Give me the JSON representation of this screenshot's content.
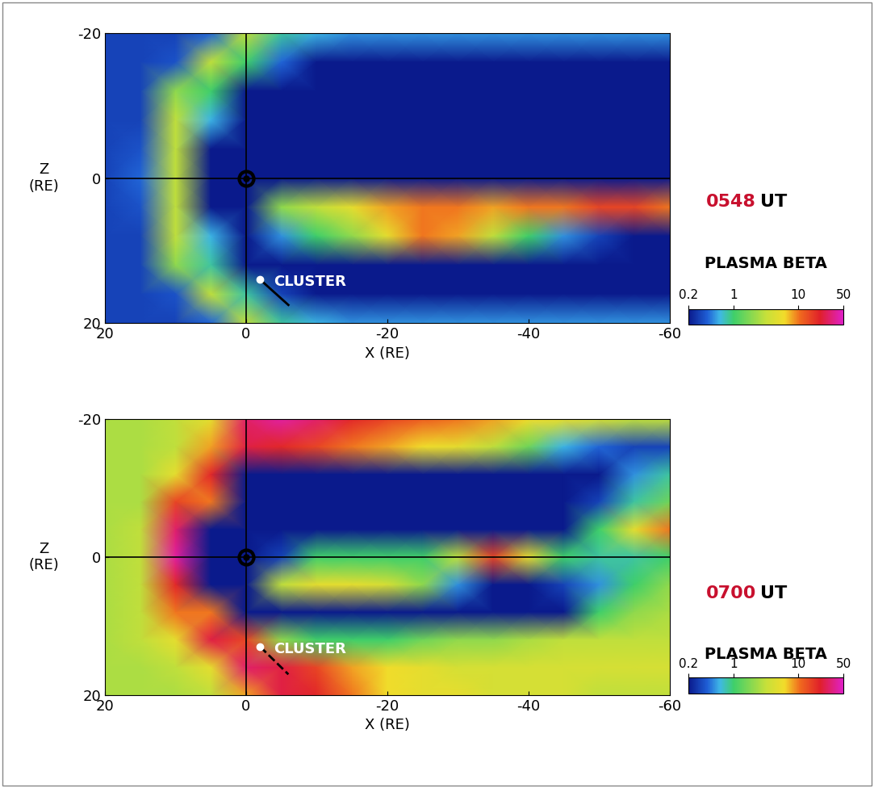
{
  "chart_data": [
    {
      "type": "heatmap",
      "time": "0548",
      "time_unit": "UT",
      "colorbar_label": "PLASMA BETA",
      "xlabel": "X (RE)",
      "ylabel": "Z\n(RE)",
      "xlim": [
        20,
        -60
      ],
      "ylim": [
        20,
        -20
      ],
      "xticks": [
        20,
        0,
        -20,
        -40,
        -60
      ],
      "yticks": [
        -20,
        0,
        20
      ],
      "colorbar_range": [
        0.2,
        50
      ],
      "colorbar_ticks": [
        0.2,
        1,
        10,
        50
      ],
      "reference_lines": {
        "x": 0,
        "y": 0
      },
      "annotations": [
        {
          "text": "CLUSTER",
          "x": -2,
          "y": 14
        }
      ],
      "cluster_track": [
        [
          -2,
          14
        ],
        [
          -6,
          17.5
        ]
      ],
      "x": [
        20,
        15,
        10,
        5,
        0,
        -5,
        -10,
        -15,
        -20,
        -25,
        -30,
        -35,
        -40,
        -45,
        -50,
        -55,
        -60
      ],
      "y": [
        -20,
        -16,
        -12,
        -8,
        -4,
        0,
        4,
        8,
        12,
        16,
        20
      ],
      "cells": [
        [
          0.3,
          0.3,
          0.3,
          0.4,
          3,
          0.8,
          0.6,
          0.5,
          0.5,
          0.5,
          0.5,
          0.5,
          0.5,
          0.5,
          0.5,
          0.5,
          0.5
        ],
        [
          0.3,
          0.3,
          0.35,
          3,
          1,
          0.4,
          0.2,
          0.2,
          0.2,
          0.2,
          0.2,
          0.2,
          0.2,
          0.2,
          0.2,
          0.2,
          0.2
        ],
        [
          0.3,
          0.3,
          2,
          1,
          0.1,
          0.1,
          0.1,
          0.1,
          0.1,
          0.1,
          0.1,
          0.1,
          0.1,
          0.1,
          0.1,
          0.1,
          0.1
        ],
        [
          0.3,
          0.3,
          3,
          0.6,
          0.1,
          0.1,
          0.1,
          0.1,
          0.1,
          0.1,
          0.1,
          0.1,
          0.1,
          0.1,
          0.1,
          0.1,
          0.1
        ],
        [
          0.3,
          0.35,
          3,
          0.1,
          0.1,
          0.1,
          0.1,
          0.1,
          0.1,
          0.1,
          0.1,
          0.1,
          0.1,
          0.1,
          0.1,
          0.1,
          0.1
        ],
        [
          0.3,
          0.4,
          3,
          0.1,
          0.1,
          0.1,
          0.1,
          0.1,
          0.1,
          0.1,
          0.1,
          0.1,
          0.1,
          0.1,
          0.1,
          0.1,
          0.1
        ],
        [
          0.3,
          0.35,
          3,
          0.1,
          0.1,
          2,
          3,
          5,
          8,
          10,
          10,
          8,
          10,
          10,
          15,
          15,
          10
        ],
        [
          0.3,
          0.3,
          3,
          0.6,
          0.1,
          0.5,
          1,
          2,
          5,
          10,
          8,
          3,
          1,
          0.5,
          0.3,
          0.2,
          0.1
        ],
        [
          0.3,
          0.3,
          2,
          0.8,
          0.1,
          0.1,
          0.1,
          0.1,
          0.1,
          0.1,
          0.1,
          0.1,
          0.1,
          0.1,
          0.1,
          0.1,
          0.1
        ],
        [
          0.3,
          0.3,
          0.35,
          3,
          0.8,
          0.3,
          0.2,
          0.2,
          0.2,
          0.2,
          0.2,
          0.2,
          0.2,
          0.2,
          0.2,
          0.2,
          0.2
        ],
        [
          0.3,
          0.3,
          0.3,
          0.4,
          3,
          0.8,
          0.6,
          0.5,
          0.5,
          0.5,
          0.5,
          0.5,
          0.5,
          0.5,
          0.5,
          0.5,
          0.5
        ]
      ]
    },
    {
      "type": "heatmap",
      "time": "0700",
      "time_unit": "UT",
      "colorbar_label": "PLASMA BETA",
      "xlabel": "X (RE)",
      "ylabel": "Z\n(RE)",
      "xlim": [
        20,
        -60
      ],
      "ylim": [
        20,
        -20
      ],
      "xticks": [
        20,
        0,
        -20,
        -40,
        -60
      ],
      "yticks": [
        -20,
        0,
        20
      ],
      "colorbar_range": [
        0.2,
        50
      ],
      "colorbar_ticks": [
        0.2,
        1,
        10,
        50
      ],
      "reference_lines": {
        "x": 0,
        "y": 0
      },
      "annotations": [
        {
          "text": "CLUSTER",
          "x": -2,
          "y": 13
        }
      ],
      "cluster_track": [
        [
          -2,
          13
        ],
        [
          -6,
          17
        ]
      ],
      "x": [
        20,
        15,
        10,
        5,
        0,
        -5,
        -10,
        -15,
        -20,
        -25,
        -30,
        -35,
        -40,
        -45,
        -50,
        -55,
        -60
      ],
      "y": [
        -20,
        -16,
        -12,
        -8,
        -4,
        0,
        4,
        8,
        12,
        16,
        20
      ],
      "cells": [
        [
          2.5,
          2.5,
          3,
          5,
          30,
          40,
          30,
          20,
          15,
          12,
          10,
          8,
          6,
          5,
          4,
          3,
          3
        ],
        [
          2.5,
          2.5,
          3,
          8,
          25,
          20,
          15,
          10,
          8,
          6,
          5,
          3,
          1.5,
          0.6,
          0.4,
          0.3,
          0.3
        ],
        [
          2.5,
          2.5,
          5,
          20,
          0.1,
          0.1,
          0.1,
          0.1,
          0.1,
          0.1,
          0.1,
          0.1,
          0.1,
          0.1,
          0.2,
          0.5,
          0.8
        ],
        [
          2.5,
          2.5,
          15,
          10,
          0.1,
          0.1,
          0.1,
          0.1,
          0.1,
          0.1,
          0.1,
          0.1,
          0.1,
          0.1,
          0.3,
          0.8,
          1.5
        ],
        [
          2.5,
          3,
          30,
          0.1,
          0.1,
          0.1,
          0.1,
          0.1,
          0.1,
          0.1,
          0.1,
          0.1,
          0.1,
          0.1,
          1,
          5,
          10
        ],
        [
          2.5,
          3,
          40,
          0.1,
          0.1,
          0.3,
          1,
          1,
          1,
          1,
          3,
          15,
          5,
          1,
          0.8,
          0.8,
          1
        ],
        [
          2.5,
          3,
          20,
          0.1,
          0.1,
          3,
          5,
          5,
          4,
          2,
          0.5,
          0.2,
          0.2,
          0.3,
          0.5,
          1,
          2
        ],
        [
          2.5,
          3,
          10,
          10,
          0.1,
          0.1,
          0.1,
          0.1,
          0.1,
          0.1,
          0.1,
          0.1,
          0.1,
          0.2,
          1,
          2,
          2.5
        ],
        [
          2.5,
          3,
          5,
          25,
          15,
          2,
          1,
          1,
          1,
          1.5,
          2,
          2,
          2.5,
          3,
          3,
          3,
          3
        ],
        [
          2.5,
          2.5,
          3,
          5,
          30,
          25,
          15,
          8,
          6,
          5,
          4,
          4,
          4,
          4,
          4,
          4,
          4
        ],
        [
          2.5,
          2.5,
          2.5,
          3,
          8,
          25,
          20,
          10,
          6,
          5,
          5,
          4,
          4,
          4,
          3,
          3,
          3
        ]
      ]
    }
  ]
}
